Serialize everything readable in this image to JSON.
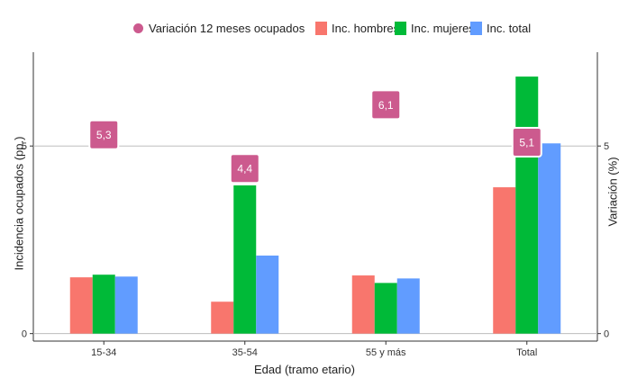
{
  "legend": {
    "dot": "Variación 12 meses ocupados",
    "hombres": "Inc. hombres",
    "mujeres": "Inc. mujeres",
    "total": "Inc. total"
  },
  "colors": {
    "hombres": "#F8766D",
    "mujeres": "#00BA38",
    "total": "#619CFF",
    "dot": "#CC5A8E"
  },
  "chart_data": {
    "type": "bar",
    "categories": [
      "15-34",
      "35-54",
      "55 y más",
      "Total"
    ],
    "series": [
      {
        "name": "Inc. hombres",
        "values": [
          1.5,
          0.85,
          1.55,
          3.9
        ]
      },
      {
        "name": "Inc. mujeres",
        "values": [
          1.57,
          3.95,
          1.35,
          6.85
        ]
      },
      {
        "name": "Inc. total",
        "values": [
          1.52,
          2.08,
          1.47,
          5.07
        ]
      }
    ],
    "points": {
      "name": "Variación 12 meses ocupados",
      "values": [
        5.3,
        4.4,
        6.1,
        5.1
      ],
      "labels": [
        "5,3",
        "4,4",
        "6,1",
        "5,1"
      ]
    },
    "xlabel": "Edad (tramo etario)",
    "ylabel_left": "Incidencia ocupados (pp.)",
    "ylabel_right": "Variación (%)",
    "yticks": [
      "0",
      "5"
    ],
    "ylim": [
      -0.2,
      7.5
    ],
    "grid": true,
    "legend_position": "top"
  }
}
